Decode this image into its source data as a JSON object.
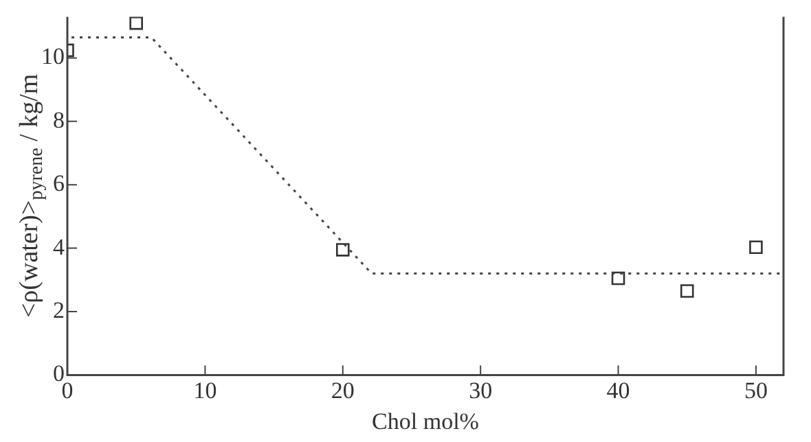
{
  "chart_data": {
    "type": "scatter",
    "xlabel": "Chol mol%",
    "ylabel": "<ρ(water)>$_{pyrene}$ / kg/m",
    "xlim": [
      0,
      52
    ],
    "xticks": [
      0,
      10,
      20,
      30,
      40,
      50
    ],
    "ylim": [
      0,
      11.3
    ],
    "yticks": [
      0,
      2,
      4,
      6,
      8,
      10
    ],
    "grid": false,
    "legend": false,
    "series": [
      {
        "color": "#333333",
        "marker": "square",
        "x": [
          0,
          5,
          20,
          40,
          45,
          50
        ],
        "values": [
          10.24,
          11.1,
          3.95,
          3.05,
          2.65,
          4.03
        ]
      },
      {
        "type": "line",
        "color": "#444444",
        "marker": "none",
        "line_style": "dotted",
        "x": [
          0.3,
          6.1,
          22.1,
          52
        ],
        "values": [
          10.65,
          10.65,
          3.2,
          3.2
        ]
      }
    ]
  }
}
